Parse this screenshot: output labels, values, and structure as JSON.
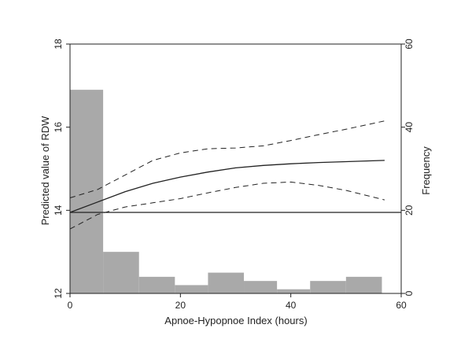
{
  "chart_data": {
    "type": "bar+line",
    "xlabel": "Apnoe-Hypopnoe Index (hours)",
    "ylabel_left": "Predicted value of RDW",
    "ylabel_right": "Frequency",
    "xlim": [
      0,
      60
    ],
    "ylim_left": [
      12,
      18
    ],
    "ylim_right": [
      0,
      60
    ],
    "x_ticks": [
      "0",
      "20",
      "40",
      "60"
    ],
    "y_left_ticks": [
      "12",
      "14",
      "16",
      "18"
    ],
    "y_right_ticks": [
      "0",
      "20",
      "40",
      "60"
    ],
    "grid": false,
    "colors": {
      "bars": "#a9a9a9",
      "line": "#222222",
      "axis": "#222222"
    },
    "histogram": {
      "bin_edges": [
        0,
        6,
        12.5,
        19,
        25,
        31.5,
        37.5,
        43.5,
        50,
        56.5
      ],
      "frequencies": [
        49,
        10,
        4,
        2,
        5,
        3,
        1,
        3,
        4
      ]
    },
    "reference_line": {
      "y_right": 19.5
    },
    "series": [
      {
        "role": "estimate",
        "style": "solid",
        "x": [
          0,
          5,
          10,
          15,
          20,
          25,
          30,
          35,
          40,
          45,
          50,
          57
        ],
        "y": [
          13.95,
          14.2,
          14.45,
          14.65,
          14.8,
          14.92,
          15.02,
          15.08,
          15.12,
          15.15,
          15.17,
          15.2
        ]
      },
      {
        "role": "upper_ci",
        "style": "dashed",
        "x": [
          0,
          5,
          10,
          15,
          20,
          25,
          30,
          35,
          40,
          45,
          50,
          57
        ],
        "y": [
          14.3,
          14.5,
          14.85,
          15.2,
          15.38,
          15.48,
          15.5,
          15.55,
          15.68,
          15.82,
          15.95,
          16.15
        ]
      },
      {
        "role": "lower_ci",
        "style": "dashed",
        "x": [
          0,
          5,
          10,
          15,
          20,
          25,
          30,
          35,
          40,
          45,
          50,
          57
        ],
        "y": [
          13.55,
          13.9,
          14.08,
          14.18,
          14.28,
          14.42,
          14.55,
          14.65,
          14.68,
          14.6,
          14.48,
          14.25
        ]
      }
    ]
  }
}
